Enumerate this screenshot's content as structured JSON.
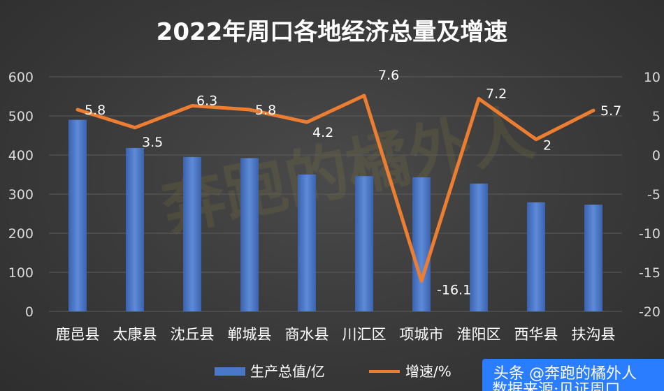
{
  "chart_data": {
    "type": "bar+line",
    "title": "2022年周口各地经济总量及增速",
    "categories": [
      "鹿邑县",
      "太康县",
      "沈丘县",
      "郸城县",
      "商水县",
      "川汇区",
      "项城市",
      "淮阳区",
      "西华县",
      "扶沟县"
    ],
    "series": [
      {
        "name": "生产总值/亿",
        "type": "bar",
        "axis": "left",
        "color": "#4a78c8",
        "values": [
          490,
          418,
          395,
          392,
          350,
          346,
          343,
          327,
          279,
          273
        ]
      },
      {
        "name": "增速/%",
        "type": "line",
        "axis": "right",
        "color": "#ed7d31",
        "values": [
          5.8,
          3.5,
          6.3,
          5.8,
          4.2,
          7.6,
          -16.1,
          7.2,
          2,
          5.7
        ],
        "labels": [
          "5.8",
          "3.5",
          "6.3",
          "5.8",
          "4.2",
          "7.6",
          "-16.1",
          "7.2",
          "2",
          "5.7"
        ]
      }
    ],
    "y_left": {
      "min": 0,
      "max": 600,
      "ticks": [
        "0",
        "100",
        "200",
        "300",
        "400",
        "500",
        "600"
      ]
    },
    "y_right": {
      "min": -20,
      "max": 10,
      "ticks": [
        "-20",
        "-15",
        "-10",
        "-5",
        "0",
        "5",
        "10"
      ]
    },
    "grid": true,
    "legend": "bottom"
  },
  "watermark": {
    "line1": "头条 @奔跑的橘外人",
    "line2": "数据来源:见证周口"
  },
  "colors": {
    "background": "#383838",
    "bar": "#4a78c8",
    "line": "#ed7d31",
    "badge": "#2a7dff"
  }
}
